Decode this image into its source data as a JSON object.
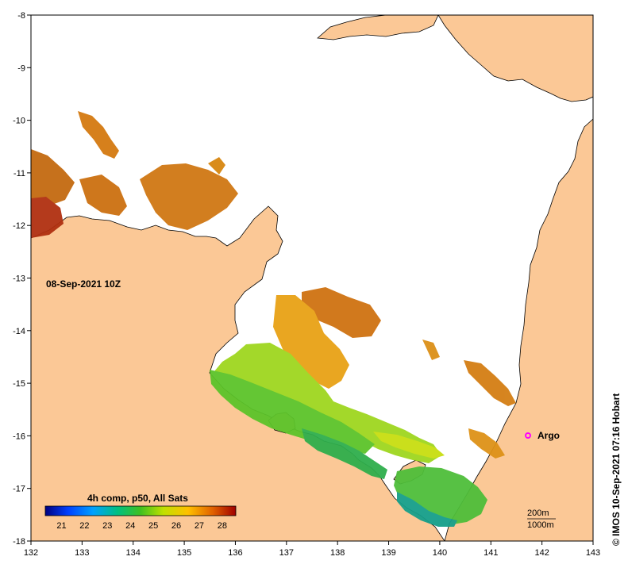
{
  "map": {
    "date_label": "08-Sep-2021 10Z",
    "lon_ticks": [
      "132",
      "133",
      "134",
      "135",
      "136",
      "137",
      "138",
      "139",
      "140",
      "141",
      "142",
      "143"
    ],
    "lat_ticks": [
      "-8",
      "-9",
      "-10",
      "-11",
      "-12",
      "-13",
      "-14",
      "-15",
      "-16",
      "-17",
      "-18"
    ],
    "land_color": "#fbc896",
    "water_color": "#ffffff"
  },
  "argo": {
    "label": "Argo",
    "marker_color": "#ff00ff"
  },
  "scale": {
    "label_top": "200m",
    "label_bottom": "1000m"
  },
  "colorbar": {
    "title": "4h comp, p50, All Sats",
    "ticks": [
      "21",
      "22",
      "23",
      "24",
      "25",
      "26",
      "27",
      "28"
    ],
    "colors": [
      "#000080",
      "#0040ff",
      "#00a0ff",
      "#00c080",
      "#40c020",
      "#c0e000",
      "#ffc000",
      "#e06000",
      "#a00000"
    ]
  },
  "credit": "© IMOS 10-Sep-2021 07:16 Hobart"
}
